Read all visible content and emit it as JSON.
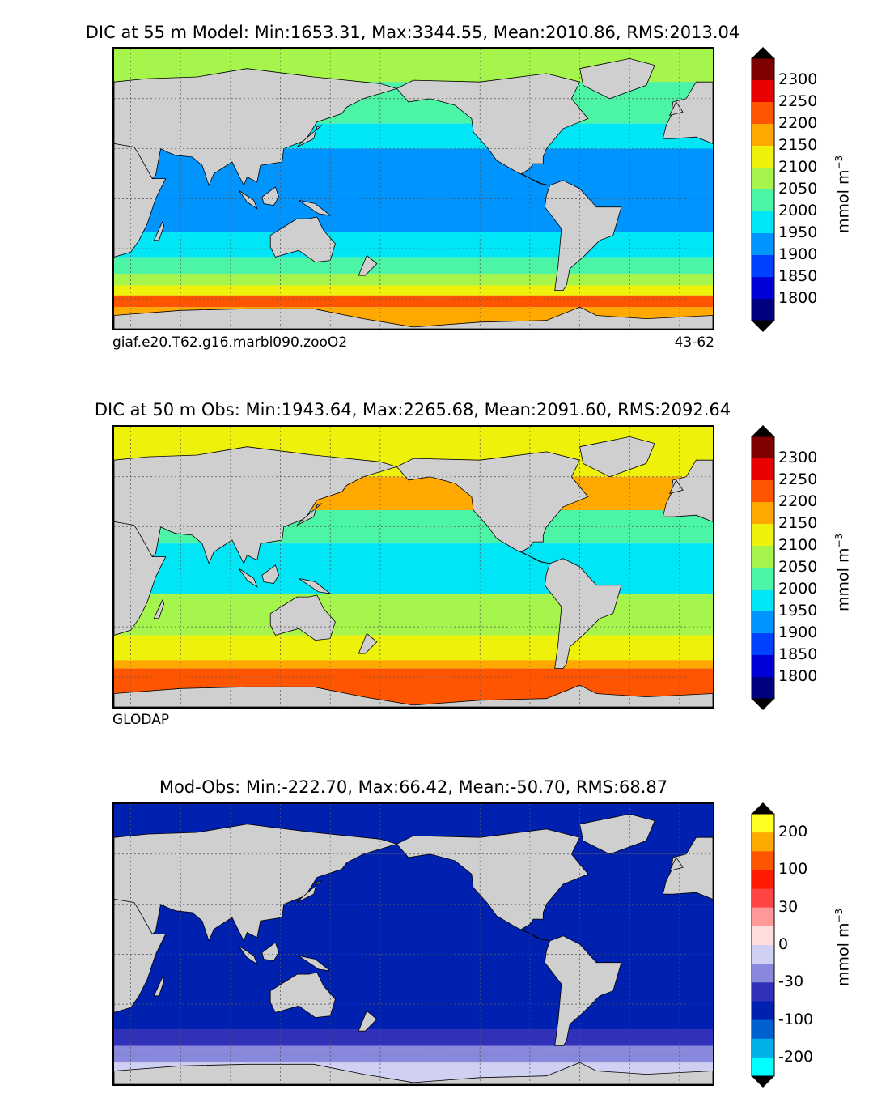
{
  "colors": {
    "land": "#cfcfcf",
    "ice": "#ffffff",
    "grid": "#555555",
    "dic_levels": [
      "#00007f",
      "#0000d8",
      "#0040ff",
      "#0094ff",
      "#00e6f6",
      "#4cf5a6",
      "#a6f54c",
      "#eef20a",
      "#ffa800",
      "#ff5500",
      "#e80000",
      "#7f0000"
    ],
    "diff_levels": [
      "#00ffff",
      "#00b0e8",
      "#0060d0",
      "#0020b0",
      "#3030b8",
      "#8888dd",
      "#d0d0f2",
      "#ffdddd",
      "#ff9999",
      "#ff4444",
      "#ff1a00",
      "#ff5500",
      "#ffaa00",
      "#ffff22"
    ]
  },
  "chart_data": [
    {
      "type": "heatmap",
      "title": "DIC at 55 m Model: Min:1653.31, Max:3344.55, Mean:2010.86, RMS:2013.04",
      "footer_left": "giaf.e20.T62.g16.marbl090.zooO2",
      "footer_right": "43-62",
      "colorbar": {
        "label_main": "mmol m",
        "label_exp": "−3",
        "ticks": [
          "2300",
          "2250",
          "2200",
          "2150",
          "2100",
          "2050",
          "2000",
          "1950",
          "1900",
          "1850",
          "1800"
        ],
        "extend": "both"
      },
      "field_bands": [
        {
          "lat_from": 90,
          "lat_to": 70,
          "level": 6
        },
        {
          "lat_from": 70,
          "lat_to": 45,
          "level": 5
        },
        {
          "lat_from": 45,
          "lat_to": 30,
          "level": 4
        },
        {
          "lat_from": 30,
          "lat_to": -20,
          "level": 3
        },
        {
          "lat_from": -20,
          "lat_to": -35,
          "level": 4
        },
        {
          "lat_from": -35,
          "lat_to": -45,
          "level": 5
        },
        {
          "lat_from": -45,
          "lat_to": -52,
          "level": 6
        },
        {
          "lat_from": -52,
          "lat_to": -58,
          "level": 7
        },
        {
          "lat_from": -58,
          "lat_to": -65,
          "level": 9
        },
        {
          "lat_from": -65,
          "lat_to": -78,
          "level": 8
        }
      ]
    },
    {
      "type": "heatmap",
      "title": "DIC at 50 m Obs: Min:1943.64, Max:2265.68, Mean:2091.60, RMS:2092.64",
      "footer_left": "GLODAP",
      "footer_right": "",
      "colorbar": {
        "label_main": "mmol m",
        "label_exp": "−3",
        "ticks": [
          "2300",
          "2250",
          "2200",
          "2150",
          "2100",
          "2050",
          "2000",
          "1950",
          "1900",
          "1850",
          "1800"
        ],
        "extend": "both"
      },
      "field_bands": [
        {
          "lat_from": 90,
          "lat_to": 60,
          "level": 7
        },
        {
          "lat_from": 60,
          "lat_to": 40,
          "level": 8
        },
        {
          "lat_from": 40,
          "lat_to": 20,
          "level": 5
        },
        {
          "lat_from": 20,
          "lat_to": -10,
          "level": 4
        },
        {
          "lat_from": -10,
          "lat_to": -35,
          "level": 6
        },
        {
          "lat_from": -35,
          "lat_to": -50,
          "level": 7
        },
        {
          "lat_from": -50,
          "lat_to": -55,
          "level": 8
        },
        {
          "lat_from": -55,
          "lat_to": -78,
          "level": 9
        }
      ]
    },
    {
      "type": "heatmap",
      "title": "Mod-Obs: Min:-222.70, Max:66.42, Mean:-50.70, RMS:68.87",
      "footer_left": "",
      "footer_right": "",
      "colorbar": {
        "label_main": "mmol m",
        "label_exp": "−3",
        "ticks": [
          "200",
          "100",
          "30",
          "0",
          "-30",
          "-100",
          "-200"
        ],
        "extend": "both"
      },
      "field_bands": [
        {
          "lat_from": 90,
          "lat_to": 60,
          "level": 3
        },
        {
          "lat_from": 60,
          "lat_to": -45,
          "level": 3
        },
        {
          "lat_from": -45,
          "lat_to": -55,
          "level": 4
        },
        {
          "lat_from": -55,
          "lat_to": -65,
          "level": 5
        },
        {
          "lat_from": -65,
          "lat_to": -78,
          "level": 6
        }
      ]
    }
  ]
}
